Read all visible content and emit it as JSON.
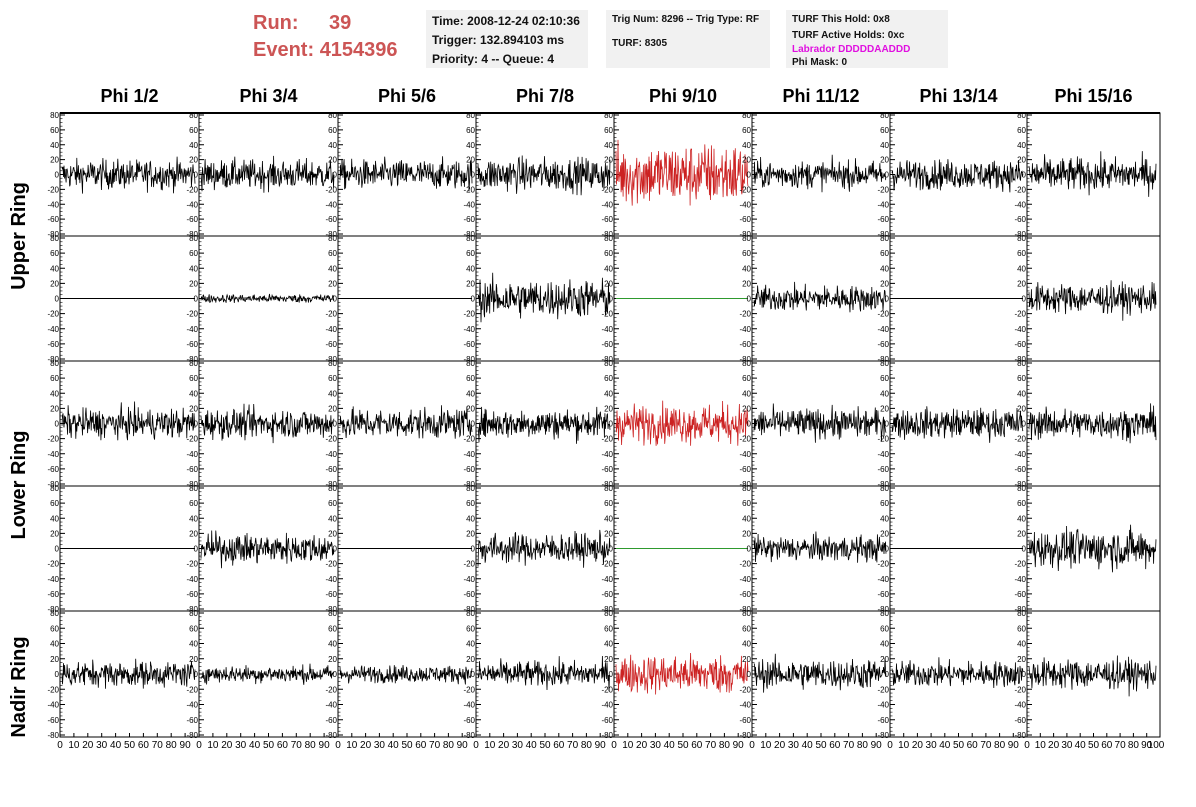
{
  "header": {
    "run_label": "Run:",
    "run_value": "39",
    "event_label": "Event:",
    "event_value": "4154396"
  },
  "time_box": {
    "time": "Time: 2008-12-24 02:10:36",
    "trigger": "Trigger: 132.894103 ms",
    "priority": "Priority: 4 -- Queue: 4"
  },
  "trig_box": {
    "trig": "Trig Num: 8296 -- Trig Type: RF",
    "turf": "TURF: 8305"
  },
  "turf_box": {
    "this_hold": "TURF This Hold: 0x8",
    "active_holds": "TURF Active Holds: 0xc",
    "labrador": "Labrador DDDDDAADDD",
    "phi_mask": "Phi Mask: 0"
  },
  "columns": [
    "Phi 1/2",
    "Phi 3/4",
    "Phi 5/6",
    "Phi 7/8",
    "Phi 9/10",
    "Phi 11/12",
    "Phi 13/14",
    "Phi 15/16"
  ],
  "rings": [
    "Upper Ring",
    "Lower Ring",
    "Nadir Ring"
  ],
  "axis": {
    "y_ticks": [
      "80",
      "60",
      "40",
      "20",
      "0",
      "-20",
      "-40",
      "-60",
      "-80"
    ],
    "x_ticks": [
      "0",
      "10",
      "20",
      "30",
      "40",
      "50",
      "60",
      "70",
      "80",
      "90"
    ],
    "x_last": "100",
    "ylim": [
      -80,
      80
    ],
    "xlim": [
      0,
      100
    ]
  },
  "colors": {
    "trace": "#000000",
    "highlight_trace": "#cc2222",
    "flat_highlight": "#2e9a2e",
    "run_text": "#cc5555",
    "labrador_text": "#e010e0",
    "info_bg": "#f1f1f1"
  },
  "chart_data": {
    "type": "line",
    "x_range": [
      0,
      100
    ],
    "y_range": [
      -80,
      80
    ],
    "grid": false,
    "panels_note_rows": 5,
    "panels_note_cols": 8,
    "amplitude_rows": [
      [
        14,
        14,
        14,
        16,
        30,
        13,
        14,
        16
      ],
      [
        0,
        4,
        0,
        18,
        0,
        12,
        0,
        14
      ],
      [
        14,
        14,
        14,
        14,
        18,
        14,
        14,
        14
      ],
      [
        0,
        14,
        0,
        14,
        0,
        12,
        0,
        18
      ],
      [
        12,
        8,
        8,
        12,
        18,
        14,
        12,
        14
      ]
    ],
    "highlight_column": 4
  }
}
